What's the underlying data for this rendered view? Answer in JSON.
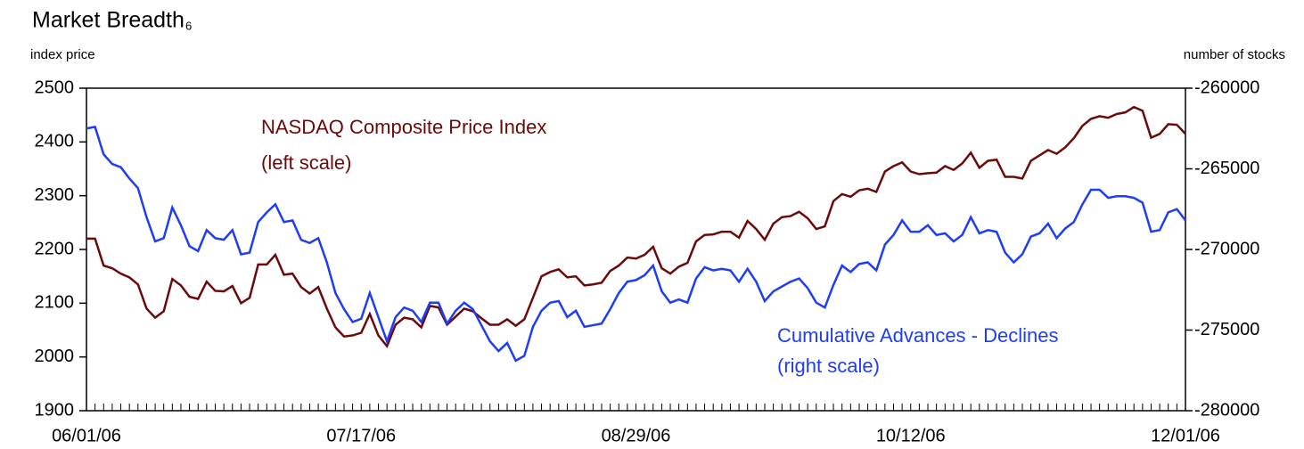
{
  "chart_data": {
    "type": "line",
    "title": "Market Breadth",
    "title_note": "6",
    "y_label": "index price",
    "y2_label": "number of stocks",
    "categories": [
      "06/01/06",
      null,
      null,
      null,
      null,
      null,
      null,
      null,
      null,
      null,
      null,
      null,
      null,
      null,
      null,
      null,
      null,
      null,
      null,
      null,
      null,
      null,
      null,
      null,
      null,
      null,
      null,
      null,
      null,
      null,
      null,
      null,
      "07/17/06",
      null,
      null,
      null,
      null,
      null,
      null,
      null,
      null,
      null,
      null,
      null,
      null,
      null,
      null,
      null,
      null,
      null,
      null,
      null,
      null,
      null,
      null,
      null,
      null,
      null,
      null,
      null,
      null,
      null,
      null,
      null,
      "08/29/06",
      null,
      null,
      null,
      null,
      null,
      null,
      null,
      null,
      null,
      null,
      null,
      null,
      null,
      null,
      null,
      null,
      null,
      null,
      null,
      null,
      null,
      null,
      null,
      null,
      null,
      null,
      null,
      null,
      null,
      null,
      null,
      "10/12/06",
      null,
      null,
      null,
      null,
      null,
      null,
      null,
      null,
      null,
      null,
      null,
      null,
      null,
      null,
      null,
      null,
      null,
      null,
      null,
      null,
      null,
      null,
      null,
      null,
      null,
      null,
      null,
      null,
      null,
      null,
      null,
      "12/01/06"
    ],
    "series": [
      {
        "name": "NASDAQ Composite Price Index",
        "note": "(left scale)",
        "color": "#6b0a0a",
        "axis": "y",
        "values": [
          2220,
          2220,
          2170,
          2165,
          2155,
          2148,
          2135,
          2090,
          2073,
          2085,
          2145,
          2133,
          2112,
          2108,
          2140,
          2123,
          2122,
          2132,
          2100,
          2110,
          2172,
          2172,
          2190,
          2153,
          2155,
          2130,
          2118,
          2130,
          2090,
          2055,
          2038,
          2040,
          2045,
          2080,
          2040,
          2020,
          2060,
          2073,
          2070,
          2055,
          2095,
          2092,
          2060,
          2075,
          2090,
          2085,
          2072,
          2060,
          2060,
          2070,
          2058,
          2070,
          2110,
          2150,
          2158,
          2163,
          2148,
          2150,
          2133,
          2135,
          2138,
          2160,
          2170,
          2185,
          2183,
          2190,
          2205,
          2165,
          2155,
          2168,
          2175,
          2215,
          2227,
          2228,
          2233,
          2233,
          2222,
          2253,
          2238,
          2218,
          2248,
          2260,
          2262,
          2270,
          2258,
          2238,
          2243,
          2290,
          2303,
          2298,
          2310,
          2313,
          2307,
          2345,
          2355,
          2362,
          2345,
          2340,
          2342,
          2343,
          2355,
          2348,
          2360,
          2380,
          2352,
          2365,
          2367,
          2335,
          2335,
          2332,
          2365,
          2375,
          2385,
          2378,
          2390,
          2407,
          2430,
          2443,
          2448,
          2445,
          2452,
          2455,
          2465,
          2458,
          2408,
          2415,
          2433,
          2432,
          2415
        ]
      },
      {
        "name": "Cumulative Advances - Declines",
        "note": "(right scale)",
        "color": "#1f3df5",
        "axis": "y2",
        "values": [
          -262500,
          -262400,
          -264100,
          -264700,
          -264900,
          -265600,
          -266200,
          -268000,
          -269500,
          -269300,
          -267400,
          -268500,
          -269800,
          -270100,
          -268800,
          -269300,
          -269400,
          -268800,
          -270300,
          -270200,
          -268300,
          -267700,
          -267200,
          -268300,
          -268200,
          -269400,
          -269600,
          -269300,
          -270800,
          -272700,
          -273700,
          -274500,
          -274300,
          -272700,
          -274200,
          -275700,
          -274200,
          -273600,
          -273800,
          -274500,
          -273300,
          -273300,
          -274600,
          -273800,
          -273300,
          -273700,
          -274700,
          -275700,
          -276300,
          -275800,
          -276900,
          -276600,
          -274800,
          -273800,
          -273300,
          -273200,
          -274200,
          -273800,
          -274800,
          -274700,
          -274600,
          -273700,
          -272700,
          -272000,
          -271900,
          -271600,
          -271000,
          -272600,
          -273300,
          -273100,
          -273300,
          -271800,
          -271100,
          -271300,
          -271200,
          -271300,
          -272000,
          -271200,
          -272000,
          -273200,
          -272600,
          -272300,
          -272000,
          -271800,
          -272400,
          -273300,
          -273600,
          -272200,
          -271000,
          -271400,
          -270900,
          -270800,
          -271300,
          -269700,
          -269100,
          -268200,
          -268900,
          -268900,
          -268500,
          -269100,
          -269000,
          -269500,
          -269100,
          -268000,
          -269000,
          -268800,
          -268900,
          -270200,
          -270800,
          -270300,
          -269200,
          -269000,
          -268400,
          -269300,
          -268700,
          -268300,
          -267200,
          -266300,
          -266300,
          -266800,
          -266700,
          -266700,
          -266800,
          -267100,
          -268900,
          -268800,
          -267700,
          -267500,
          -268200
        ]
      }
    ],
    "ylim": [
      1900,
      2500
    ],
    "yticks": [
      1900,
      2000,
      2100,
      2200,
      2300,
      2400,
      2500
    ],
    "y2lim": [
      -280000,
      -260000
    ],
    "y2ticks": [
      -280000,
      -275000,
      -270000,
      -265000,
      -260000
    ]
  }
}
